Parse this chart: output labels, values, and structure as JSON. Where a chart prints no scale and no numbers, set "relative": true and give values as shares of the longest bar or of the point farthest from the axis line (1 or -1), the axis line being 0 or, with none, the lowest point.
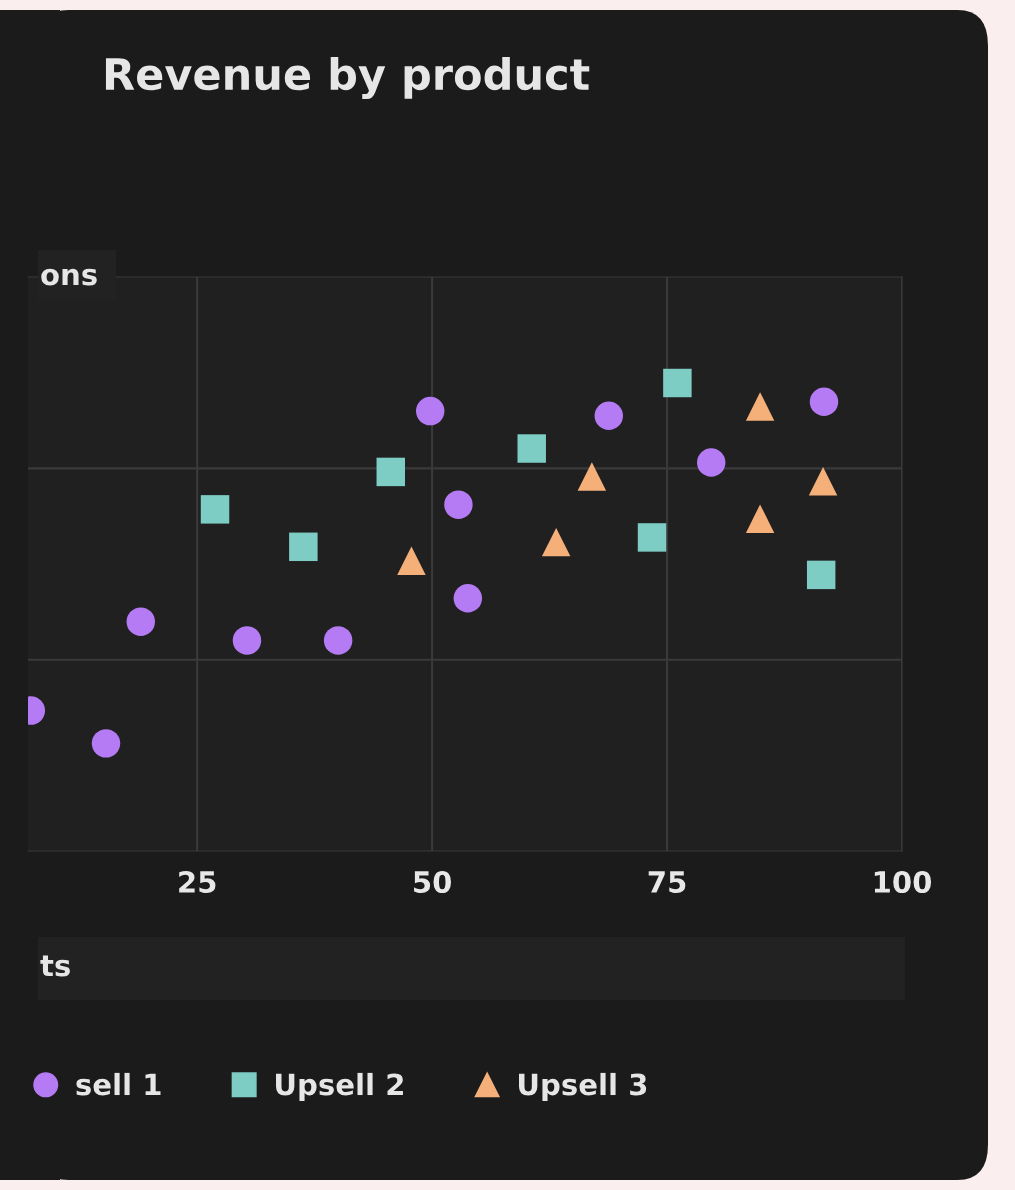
{
  "chart_data": {
    "type": "scatter",
    "title": "Revenue by product",
    "ylabel": "ons",
    "xlabel": "ts",
    "relative": true,
    "xlim": [
      7,
      100
    ],
    "xticks": [
      25,
      50,
      75,
      100
    ],
    "grid": true,
    "legend": "bottom",
    "tick_labels": "x",
    "series": [
      {
        "name": "sell 1",
        "color": "#b57bf5",
        "marker": "circle",
        "x": [
          7.3,
          15.3,
          19.0,
          30.3,
          40.0,
          49.8,
          52.8,
          53.8,
          68.8,
          79.7,
          91.7
        ],
        "values": [
          0.3,
          0.23,
          0.49,
          0.45,
          0.45,
          0.94,
          0.74,
          0.54,
          0.93,
          0.83,
          0.96
        ]
      },
      {
        "name": "Upsell 2",
        "color": "#7ecdc4",
        "marker": "square",
        "x": [
          26.9,
          36.3,
          45.6,
          60.6,
          73.4,
          76.1,
          91.4
        ],
        "values": [
          0.73,
          0.65,
          0.81,
          0.86,
          0.67,
          1.0,
          0.59
        ]
      },
      {
        "name": "Upsell 3",
        "color": "#f5b07a",
        "marker": "triangle",
        "x": [
          47.8,
          63.2,
          67.0,
          84.9,
          84.9,
          91.6
        ],
        "values": [
          0.62,
          0.66,
          0.8,
          0.95,
          0.71,
          0.79
        ]
      }
    ]
  }
}
